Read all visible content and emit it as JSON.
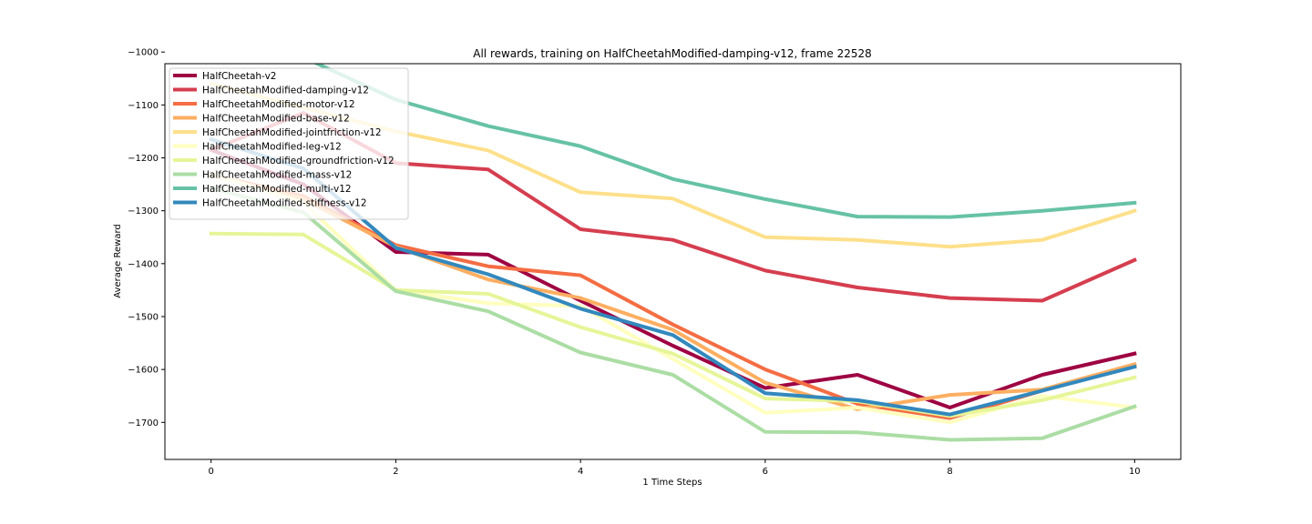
{
  "chart_data": {
    "type": "line",
    "title": "All rewards, training on HalfCheetahModified-damping-v12, frame 22528",
    "xlabel": "1 Time Steps",
    "ylabel": "Average Reward",
    "xlim": [
      -0.5,
      10.5
    ],
    "ylim": [
      -1770,
      -1022
    ],
    "xticks": [
      0,
      2,
      4,
      6,
      8,
      10
    ],
    "yticks": [
      -1000,
      -1100,
      -1200,
      -1300,
      -1400,
      -1500,
      -1600,
      -1700
    ],
    "grid": false,
    "legend_position": "top-left",
    "x": [
      0,
      1,
      2,
      3,
      4,
      5,
      6,
      7,
      8,
      9,
      10
    ],
    "series": [
      {
        "name": "HalfCheetah-v2",
        "color": "#9e0142",
        "values": [
          -1185,
          -1250,
          -1378,
          -1383,
          -1470,
          -1555,
          -1635,
          -1610,
          -1672,
          -1610,
          -1570
        ]
      },
      {
        "name": "HalfCheetahModified-damping-v12",
        "color": "#d53e4f",
        "values": [
          -1185,
          -1115,
          -1210,
          -1222,
          -1335,
          -1355,
          -1413,
          -1445,
          -1465,
          -1470,
          -1393
        ]
      },
      {
        "name": "HalfCheetahModified-motor-v12",
        "color": "#f46d43",
        "values": [
          -1232,
          -1272,
          -1365,
          -1405,
          -1422,
          -1515,
          -1600,
          -1665,
          -1692,
          -1640,
          -1592
        ]
      },
      {
        "name": "HalfCheetahModified-base-v12",
        "color": "#fdae61",
        "values": [
          -1232,
          -1278,
          -1368,
          -1430,
          -1465,
          -1525,
          -1625,
          -1675,
          -1648,
          -1638,
          -1590
        ]
      },
      {
        "name": "HalfCheetahModified-jointfriction-v12",
        "color": "#fee08b",
        "values": [
          -1060,
          -1105,
          -1150,
          -1186,
          -1265,
          -1277,
          -1350,
          -1355,
          -1368,
          -1355,
          -1300
        ]
      },
      {
        "name": "HalfCheetahModified-leg-v12",
        "color": "#ffffbf",
        "values": [
          -1230,
          -1285,
          -1450,
          -1475,
          -1480,
          -1580,
          -1682,
          -1672,
          -1700,
          -1650,
          -1672
        ]
      },
      {
        "name": "HalfCheetahModified-groundfriction-v12",
        "color": "#e6f598",
        "values": [
          -1343,
          -1345,
          -1450,
          -1457,
          -1520,
          -1570,
          -1655,
          -1660,
          -1688,
          -1658,
          -1615
        ]
      },
      {
        "name": "HalfCheetahModified-mass-v12",
        "color": "#abdda4",
        "values": [
          -1257,
          -1303,
          -1452,
          -1490,
          -1568,
          -1610,
          -1718,
          -1719,
          -1733,
          -1730,
          -1670
        ]
      },
      {
        "name": "HalfCheetahModified-multi-v12",
        "color": "#66c2a5",
        "values": [
          -950,
          -1010,
          -1090,
          -1140,
          -1178,
          -1240,
          -1278,
          -1311,
          -1312,
          -1300,
          -1285
        ]
      },
      {
        "name": "HalfCheetahModified-stiffness-v12",
        "color": "#3288bd",
        "values": [
          -1165,
          -1220,
          -1370,
          -1420,
          -1485,
          -1535,
          -1645,
          -1658,
          -1685,
          -1640,
          -1595
        ]
      }
    ]
  }
}
